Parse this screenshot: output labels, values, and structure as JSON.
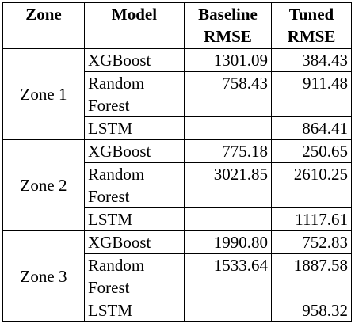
{
  "table": {
    "headers": {
      "zone": "Zone",
      "model": "Model",
      "baseline_1": "Baseline",
      "baseline_2": "RMSE",
      "tuned_1": "Tuned",
      "tuned_2": "RMSE"
    },
    "zones": [
      {
        "name": "Zone 1",
        "rows": [
          {
            "model": [
              "XGBoost"
            ],
            "baseline": "1301.09",
            "tuned": "384.43"
          },
          {
            "model": [
              "Random",
              "Forest"
            ],
            "baseline": "758.43",
            "tuned": "911.48"
          },
          {
            "model": [
              "LSTM"
            ],
            "baseline": "",
            "tuned": "864.41"
          }
        ]
      },
      {
        "name": "Zone 2",
        "rows": [
          {
            "model": [
              "XGBoost"
            ],
            "baseline": "775.18",
            "tuned": "250.65"
          },
          {
            "model": [
              "Random",
              "Forest"
            ],
            "baseline": "3021.85",
            "tuned": "2610.25"
          },
          {
            "model": [
              "LSTM"
            ],
            "baseline": "",
            "tuned": "1117.61"
          }
        ]
      },
      {
        "name": "Zone 3",
        "rows": [
          {
            "model": [
              "XGBoost"
            ],
            "baseline": "1990.80",
            "tuned": "752.83"
          },
          {
            "model": [
              "Random",
              "Forest"
            ],
            "baseline": "1533.64",
            "tuned": "1887.58"
          },
          {
            "model": [
              "LSTM"
            ],
            "baseline": "",
            "tuned": "958.32"
          }
        ]
      }
    ]
  }
}
